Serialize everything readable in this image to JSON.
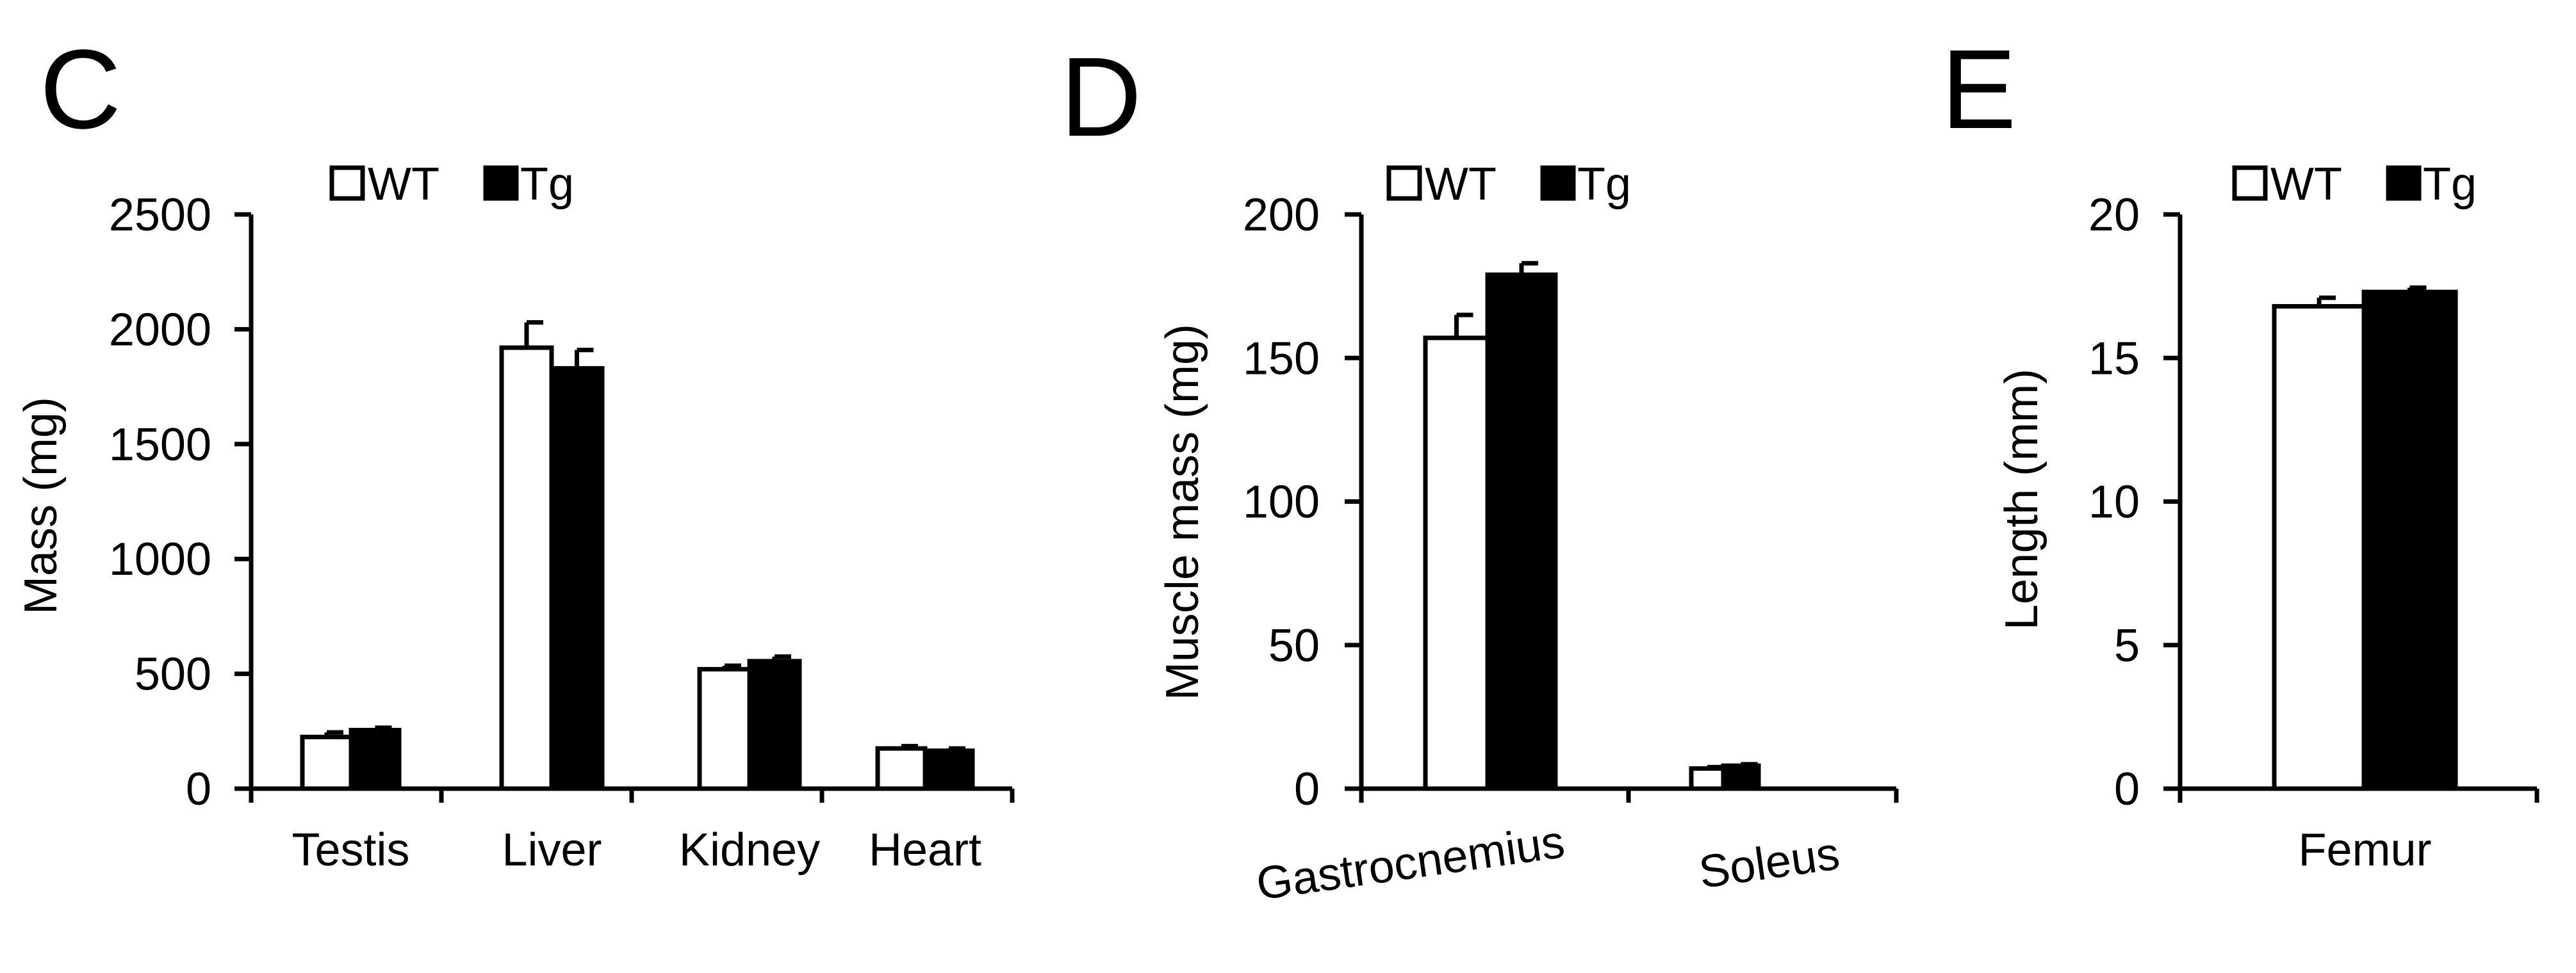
{
  "colors": {
    "wt_fill": "#ffffff",
    "tg_fill": "#000000",
    "stroke": "#000000",
    "background": "#ffffff"
  },
  "legend": {
    "wt": "WT",
    "tg": "Tg"
  },
  "chart_data": [
    {
      "panel": "C",
      "type": "bar",
      "ylabel": "Mass (mg)",
      "xlabel": "",
      "ylim": [
        0,
        2500
      ],
      "yticks": [
        0,
        500,
        1000,
        1500,
        2000,
        2500
      ],
      "legend_position": "top-center",
      "categories": [
        "Testis",
        "Liver",
        "Kidney",
        "Heart"
      ],
      "series": [
        {
          "name": "WT",
          "values": [
            225,
            1920,
            520,
            175
          ],
          "errors": [
            20,
            110,
            15,
            10
          ]
        },
        {
          "name": "Tg",
          "values": [
            255,
            1830,
            555,
            165
          ],
          "errors": [
            10,
            80,
            20,
            10
          ]
        }
      ]
    },
    {
      "panel": "D",
      "type": "bar",
      "ylabel": "Muscle mass (mg)",
      "xlabel": "",
      "ylim": [
        0,
        200
      ],
      "yticks": [
        0,
        50,
        100,
        150,
        200
      ],
      "legend_position": "top-center",
      "categories": [
        "Gastrocnemius",
        "Soleus"
      ],
      "series": [
        {
          "name": "WT",
          "values": [
            157,
            7
          ],
          "errors": [
            8,
            0.5
          ]
        },
        {
          "name": "Tg",
          "values": [
            179,
            8
          ],
          "errors": [
            4,
            0.5
          ]
        }
      ]
    },
    {
      "panel": "E",
      "type": "bar",
      "ylabel": "Length (mm)",
      "xlabel": "",
      "ylim": [
        0,
        20
      ],
      "yticks": [
        0,
        5,
        10,
        15,
        20
      ],
      "legend_position": "top-center",
      "categories": [
        "Femur"
      ],
      "series": [
        {
          "name": "WT",
          "values": [
            16.8
          ],
          "errors": [
            0.3
          ]
        },
        {
          "name": "Tg",
          "values": [
            17.3
          ],
          "errors": [
            0.15
          ]
        }
      ]
    }
  ]
}
